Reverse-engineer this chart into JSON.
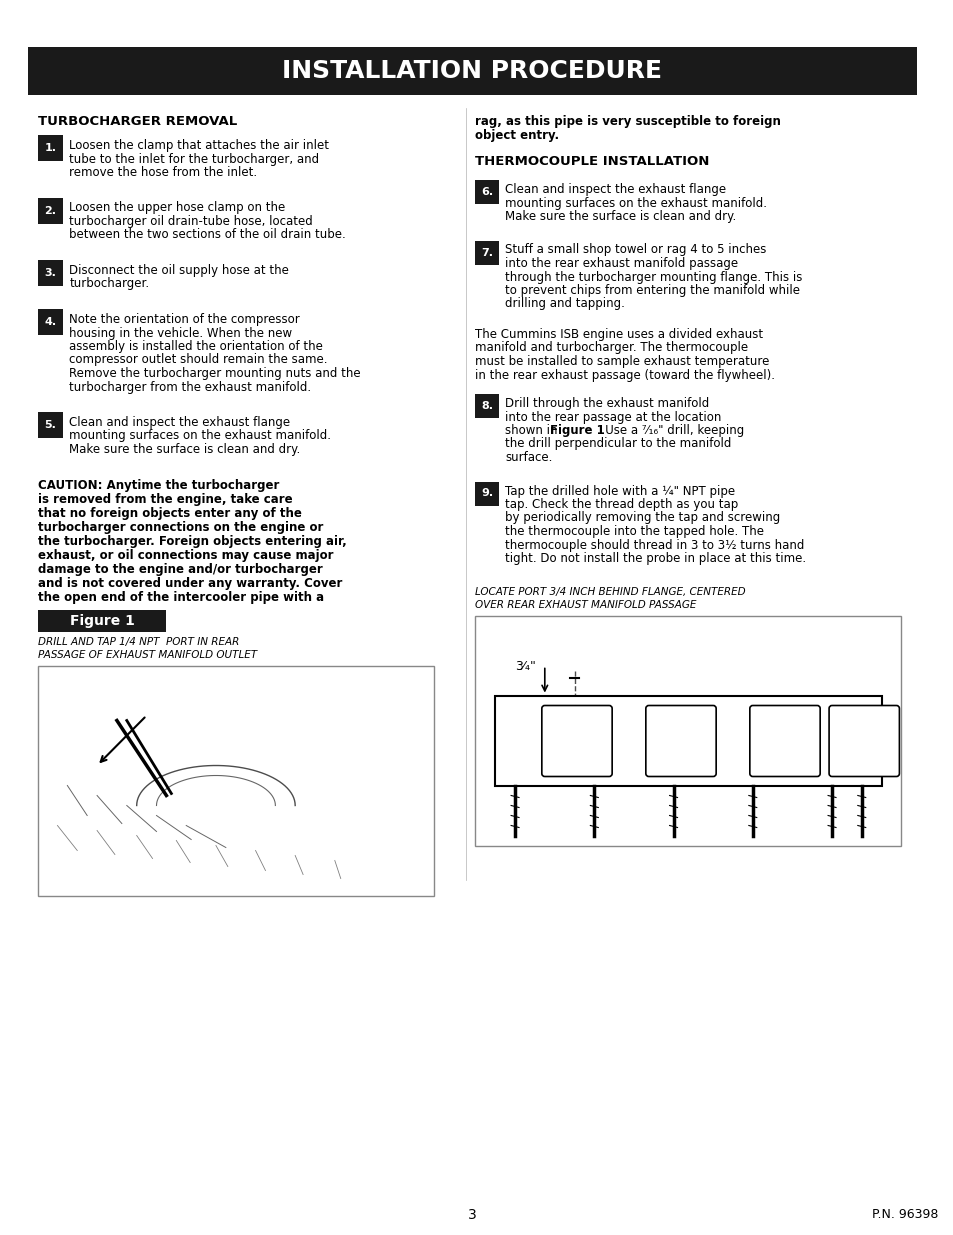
{
  "title": "INSTALLATION PROCEDURE",
  "title_bg": "#1a1a1a",
  "title_color": "#ffffff",
  "page_bg": "#ffffff",
  "text_color": "#000000",
  "step_bg": "#1a1a1a",
  "step_text_color": "#ffffff",
  "left_column": {
    "section1_title": "TURBOCHARGER REMOVAL",
    "steps": [
      {
        "num": "1.",
        "text": "Loosen the clamp that attaches the air inlet\ntube to the inlet for the turbocharger, and\nremove the hose from the inlet."
      },
      {
        "num": "2.",
        "text": "Loosen the upper hose clamp on the\nturbocharger oil drain-tube hose, located\nbetween the two sections of the oil drain tube."
      },
      {
        "num": "3.",
        "text": "Disconnect the oil supply hose at the\nturbocharger."
      },
      {
        "num": "4.",
        "text": "Note the orientation of the compressor\nhousing in the vehicle. When the new\nassembly is installed the orientation of the\ncompressor outlet should remain the same.\nRemove the turbocharger mounting nuts and the\nturbocharger from the exhaust manifold."
      },
      {
        "num": "5.",
        "text": "Clean and inspect the exhaust flange\nmounting surfaces on the exhaust manifold.\nMake sure the surface is clean and dry."
      }
    ],
    "caution_text": "CAUTION: Anytime the turbocharger\nis removed from the engine, take care\nthat no foreign objects enter any of the\nturbocharger connections on the engine or\nthe turbocharger. Foreign objects entering air,\nexhaust, or oil connections may cause major\ndamage to the engine and/or turbocharger\nand is not covered under any warranty. Cover\nthe open end of the intercooler pipe with a",
    "caution_end": "rag, as this pipe is very susceptible to foreign\nobject entry.",
    "figure_label": "Figure 1",
    "fig_caption_left": "DRILL AND TAP 1/4 NPT  PORT IN REAR\nPASSAGE OF EXHAUST MANIFOLD OUTLET"
  },
  "right_column": {
    "section2_title": "THERMOCOUPLE INSTALLATION",
    "steps": [
      {
        "num": "6.",
        "text": "Clean and inspect the exhaust flange\nmounting surfaces on the exhaust manifold.\nMake sure the surface is clean and dry."
      },
      {
        "num": "7.",
        "text": "Stuff a small shop towel or rag 4 to 5 inches\ninto the rear exhaust manifold passage\nthrough the turbocharger mounting flange. This is\nto prevent chips from entering the manifold while\ndrilling and tapping."
      },
      {
        "num": "8.",
        "text": "Drill through the exhaust manifold\ninto the rear passage at the location\nshown in Figure 1 . Use a ⁷⁄₁₆\" drill, keeping\nthe drill perpendicular to the manifold\nsurface."
      },
      {
        "num": "9.",
        "text": "Tap the drilled hole with a ¼\" NPT pipe\ntap. Check the thread depth as you tap\nby periodically removing the tap and screwing\nthe thermocouple into the tapped hole. The\nthermocouple should thread in 3 to 3½ turns hand\ntight. Do not install the probe in place at this time."
      }
    ],
    "para_text": "The Cummins ISB engine uses a divided exhaust\nmanifold and turbocharger. The thermocouple\nmust be installed to sample exhaust temperature\nin the rear exhaust passage (toward the flywheel).",
    "fig_caption_right": "LOCATE PORT 3/4 INCH BEHIND FLANGE, CENTERED\nOVER REAR EXHAUST MANIFOLD PASSAGE",
    "fig_label_34": "3⁄₄\""
  },
  "page_num": "3",
  "part_num": "P.N. 96398"
}
